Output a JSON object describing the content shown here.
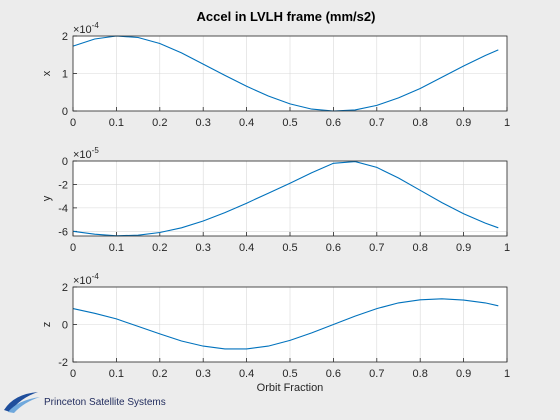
{
  "figure_title": "Accel in LVLH frame (mm/s2)",
  "logo_text": "Princeton Satellite Systems",
  "colors": {
    "line": "#0072bd",
    "logo_blue": "#1f4e9c",
    "logo_light": "#6fa8dc"
  },
  "chart_data": [
    {
      "type": "line",
      "title": "Accel in LVLH frame (mm/s2)",
      "ylabel": "x",
      "xlabel": "",
      "exponent_base": "×10",
      "exponent_power": "-4",
      "xlim": [
        0,
        1
      ],
      "ylim": [
        0,
        2
      ],
      "xticks": [
        "0",
        "0.1",
        "0.2",
        "0.3",
        "0.4",
        "0.5",
        "0.6",
        "0.7",
        "0.8",
        "0.9",
        "1"
      ],
      "yticks": [
        0,
        1,
        2
      ],
      "yticklabels": [
        "0",
        "1",
        "2"
      ],
      "grid": true,
      "x": [
        0,
        0.05,
        0.1,
        0.15,
        0.2,
        0.25,
        0.3,
        0.35,
        0.4,
        0.45,
        0.5,
        0.55,
        0.6,
        0.65,
        0.7,
        0.75,
        0.8,
        0.85,
        0.9,
        0.95,
        0.98
      ],
      "y": [
        1.73,
        1.92,
        2.0,
        1.96,
        1.8,
        1.55,
        1.25,
        0.95,
        0.66,
        0.4,
        0.19,
        0.05,
        0.0,
        0.03,
        0.15,
        0.35,
        0.6,
        0.9,
        1.2,
        1.48,
        1.63
      ]
    },
    {
      "type": "line",
      "ylabel": "y",
      "xlabel": "",
      "exponent_base": "×10",
      "exponent_power": "-5",
      "xlim": [
        0,
        1
      ],
      "ylim": [
        -6.4,
        0
      ],
      "xticks": [
        "0",
        "0.1",
        "0.2",
        "0.3",
        "0.4",
        "0.5",
        "0.6",
        "0.7",
        "0.8",
        "0.9",
        "1"
      ],
      "yticks": [
        0,
        -2,
        -4,
        -6
      ],
      "yticklabels": [
        "0",
        "-2",
        "-4",
        "-6"
      ],
      "grid": true,
      "x": [
        0,
        0.05,
        0.1,
        0.15,
        0.2,
        0.25,
        0.3,
        0.35,
        0.4,
        0.45,
        0.5,
        0.55,
        0.6,
        0.65,
        0.7,
        0.75,
        0.8,
        0.85,
        0.9,
        0.95,
        0.98
      ],
      "y": [
        -6.0,
        -6.25,
        -6.38,
        -6.33,
        -6.1,
        -5.7,
        -5.12,
        -4.4,
        -3.6,
        -2.75,
        -1.9,
        -1.0,
        -0.2,
        -0.05,
        -0.55,
        -1.45,
        -2.5,
        -3.55,
        -4.5,
        -5.3,
        -5.7
      ]
    },
    {
      "type": "line",
      "ylabel": "z",
      "xlabel": "Orbit Fraction",
      "exponent_base": "×10",
      "exponent_power": "-4",
      "xlim": [
        0,
        1
      ],
      "ylim": [
        -2,
        2
      ],
      "xticks": [
        "0",
        "0.1",
        "0.2",
        "0.3",
        "0.4",
        "0.5",
        "0.6",
        "0.7",
        "0.8",
        "0.9",
        "1"
      ],
      "yticks": [
        2,
        0,
        -2
      ],
      "yticklabels": [
        "2",
        "0",
        "-2"
      ],
      "grid": true,
      "x": [
        0,
        0.05,
        0.1,
        0.15,
        0.2,
        0.25,
        0.3,
        0.35,
        0.4,
        0.45,
        0.5,
        0.55,
        0.6,
        0.65,
        0.7,
        0.75,
        0.8,
        0.85,
        0.9,
        0.95,
        0.98
      ],
      "y": [
        0.85,
        0.6,
        0.3,
        -0.1,
        -0.5,
        -0.88,
        -1.15,
        -1.3,
        -1.3,
        -1.15,
        -0.85,
        -0.45,
        0.0,
        0.45,
        0.85,
        1.15,
        1.32,
        1.37,
        1.3,
        1.15,
        1.0
      ]
    }
  ]
}
